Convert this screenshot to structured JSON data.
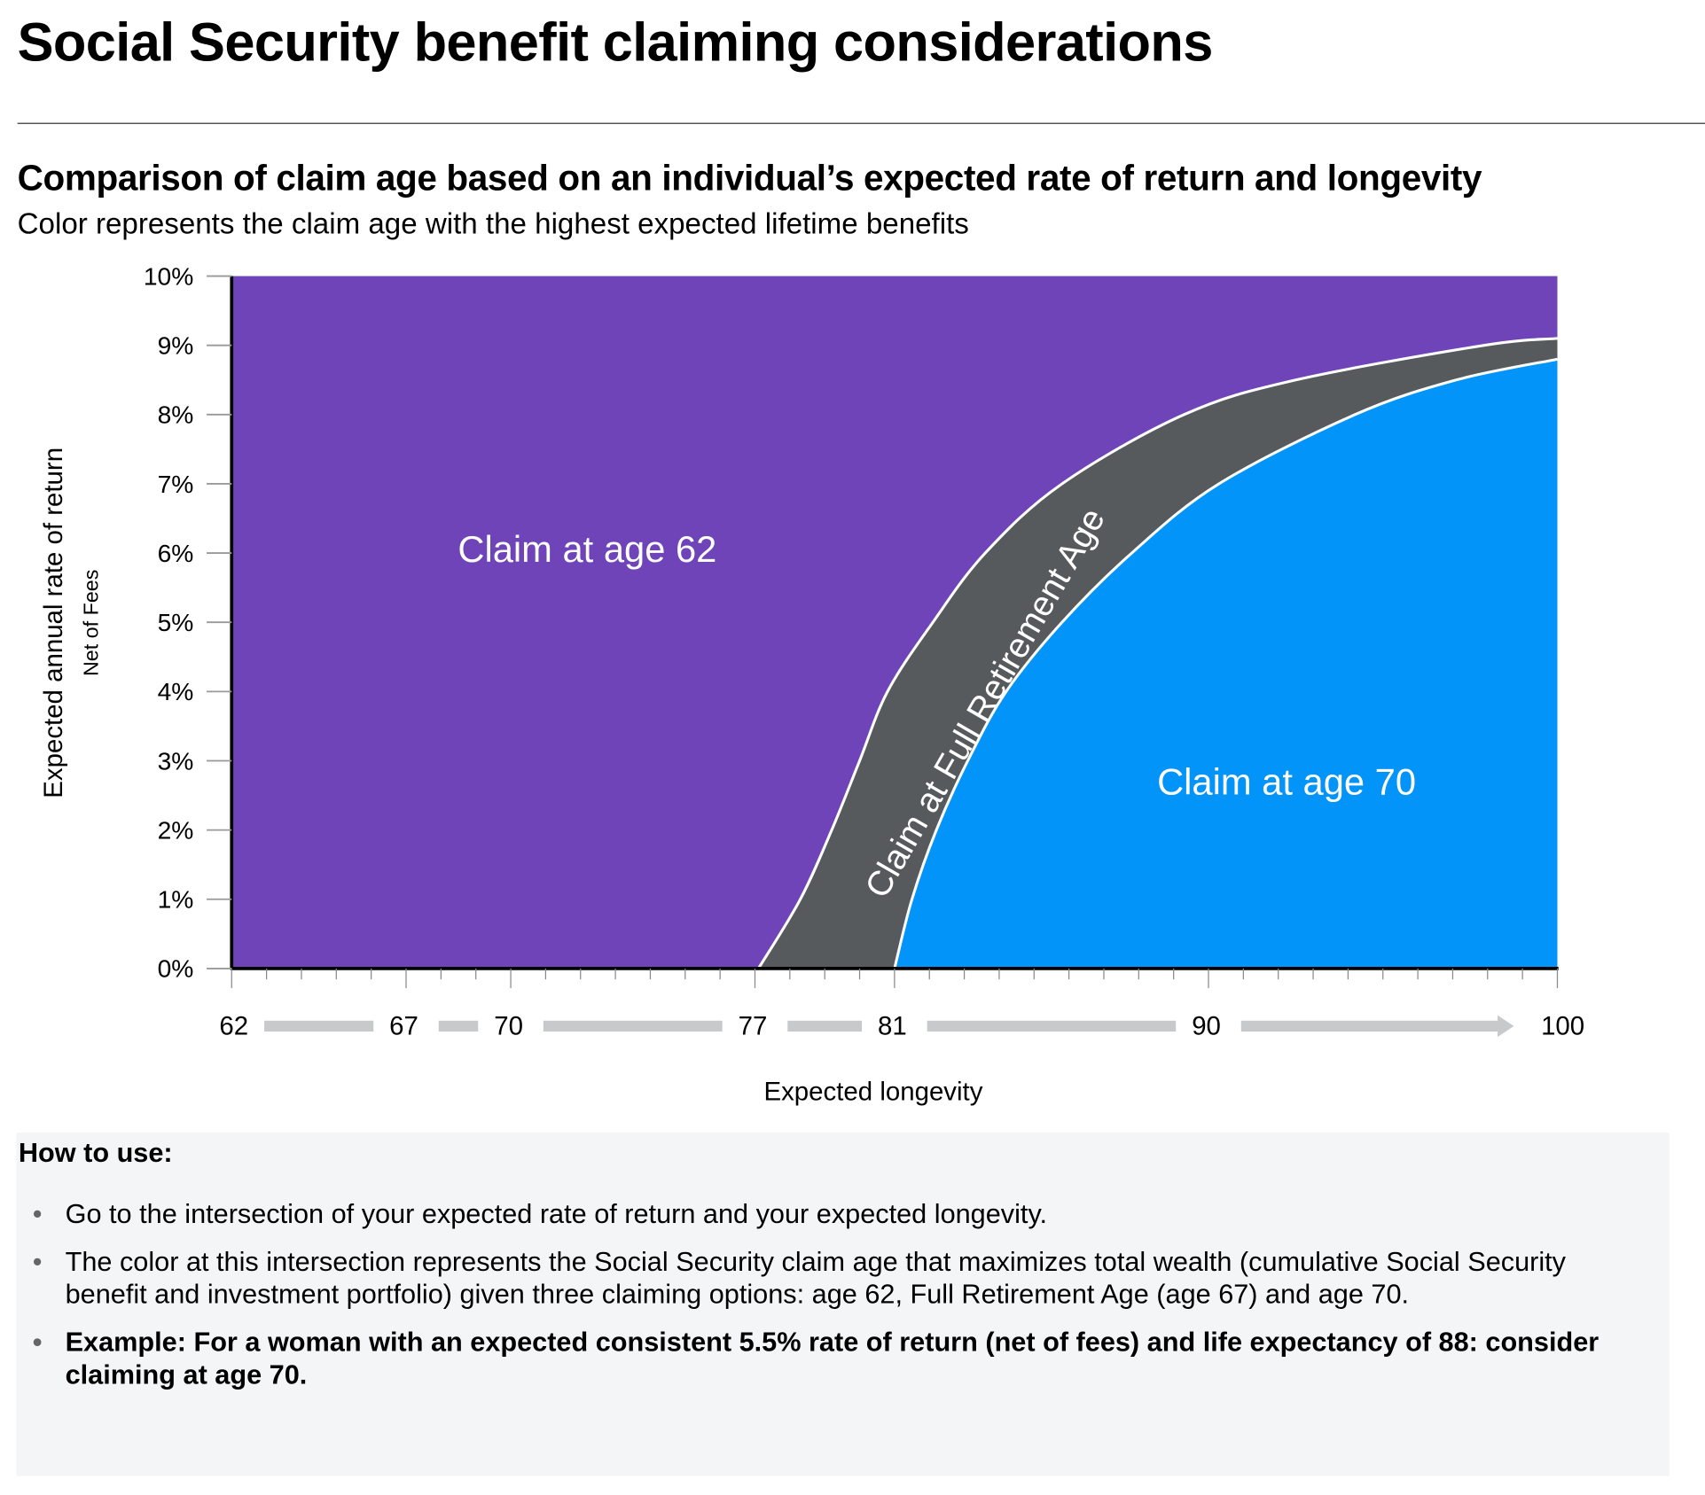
{
  "title": "Social Security benefit claiming considerations",
  "subtitle": "Comparison of claim age based on an individual’s expected rate of return and longevity",
  "description": "Color represents the claim age with the highest expected lifetime benefits",
  "chart_data": {
    "type": "area",
    "xlabel": "Expected longevity",
    "ylabel": "Expected annual rate of return",
    "ylabel_sub": "Net of Fees",
    "xlim": [
      62,
      100
    ],
    "ylim": [
      0,
      10
    ],
    "x_tick_labels": [
      "62",
      "67",
      "70",
      "77",
      "81",
      "90",
      "100"
    ],
    "x_tick_values": [
      62,
      67,
      70,
      77,
      81,
      90,
      100
    ],
    "y_tick_labels": [
      "0%",
      "1%",
      "2%",
      "3%",
      "4%",
      "5%",
      "6%",
      "7%",
      "8%",
      "9%",
      "10%"
    ],
    "regions": [
      {
        "name": "Claim at age 62",
        "color": "#6e44b8"
      },
      {
        "name": "Claim at Full Retirement Age",
        "color": "#575a5d"
      },
      {
        "name": "Claim at age 70",
        "color": "#0394fa"
      }
    ],
    "boundary_62_fra": [
      [
        77.1,
        0
      ],
      [
        78.3,
        1
      ],
      [
        79.2,
        2
      ],
      [
        80.0,
        3
      ],
      [
        80.8,
        4
      ],
      [
        82.1,
        5
      ],
      [
        83.6,
        6
      ],
      [
        85.8,
        7
      ],
      [
        89.3,
        8
      ],
      [
        92.5,
        8.5
      ],
      [
        97.9,
        9
      ],
      [
        100,
        9.1
      ]
    ],
    "boundary_fra_70": [
      [
        81.0,
        0
      ],
      [
        81.5,
        1
      ],
      [
        82.2,
        2
      ],
      [
        83.1,
        3
      ],
      [
        84.2,
        4
      ],
      [
        85.8,
        5
      ],
      [
        87.8,
        6
      ],
      [
        90.3,
        7
      ],
      [
        94.2,
        8
      ],
      [
        97.1,
        8.5
      ],
      [
        100,
        8.8
      ]
    ]
  },
  "how_to": {
    "title": "How to use:",
    "items": [
      "Go to the intersection of your expected rate of return and your expected longevity.",
      "The color at this intersection represents the Social Security claim age that maximizes total wealth (cumulative Social Security benefit and investment portfolio) given three claiming options: age 62, Full Retirement Age (age 67) and age 70.",
      "Example: For a woman with an expected consistent 5.5% rate of return (net of fees) and life expectancy of 88: consider claiming at age 70."
    ]
  }
}
